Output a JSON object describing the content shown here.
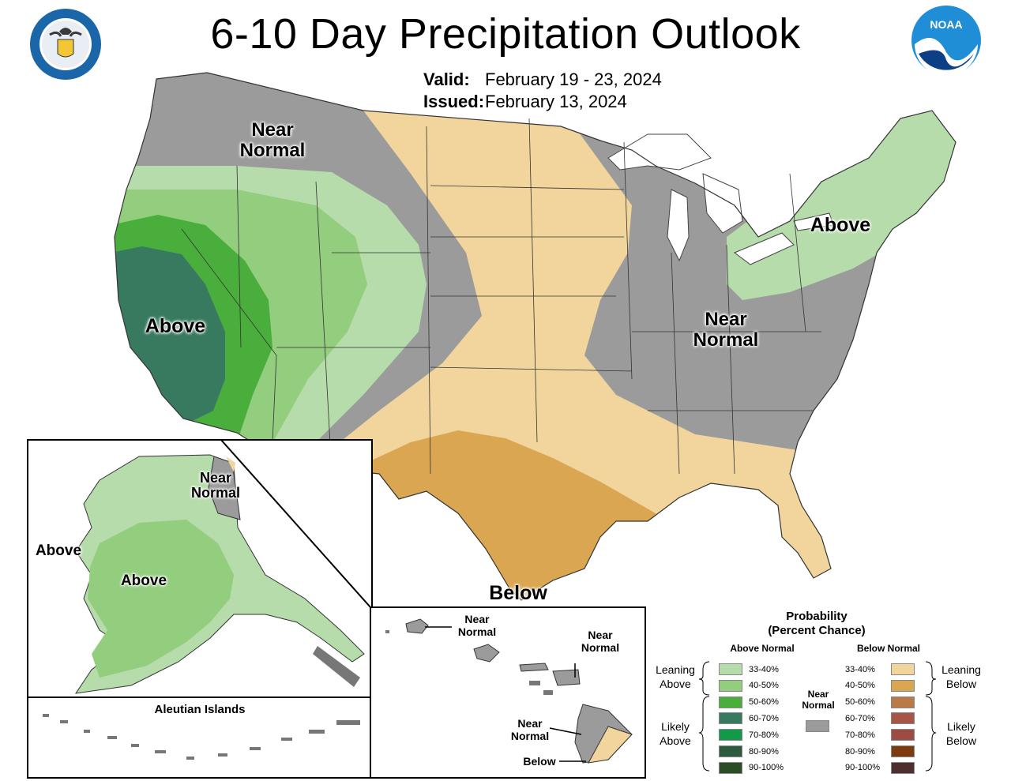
{
  "title": "6-10 Day Precipitation Outlook",
  "valid_label": "Valid:",
  "valid_value": "February 19 - 23, 2024",
  "issued_label": "Issued:",
  "issued_value": "February 13, 2024",
  "logos": {
    "left": "Department of Commerce seal",
    "right": "NOAA"
  },
  "regions": {
    "nw_near_normal": "Near\nNormal",
    "west_above": "Above",
    "ne_above": "Above",
    "east_near_normal": "Near\nNormal",
    "south_below": "Below"
  },
  "alaska": {
    "near_normal": "Near\nNormal",
    "above_west": "Above",
    "above_center": "Above",
    "aleutian_title": "Aleutian Islands"
  },
  "hawaii": {
    "near_normal_1": "Near\nNormal",
    "near_normal_2": "Near\nNormal",
    "near_normal_3": "Near\nNormal",
    "below": "Below"
  },
  "legend": {
    "title_line1": "Probability",
    "title_line2": "(Percent Chance)",
    "above_header": "Above Normal",
    "below_header": "Below Normal",
    "near_label": "Near\nNormal",
    "leaning_above": "Leaning\nAbove",
    "likely_above": "Likely\nAbove",
    "leaning_below": "Leaning\nBelow",
    "likely_below": "Likely\nBelow",
    "above_rows": [
      {
        "pct": "33-40%",
        "color": "#b5dcaa"
      },
      {
        "pct": "40-50%",
        "color": "#93cd7e"
      },
      {
        "pct": "50-60%",
        "color": "#4aae3c"
      },
      {
        "pct": "60-70%",
        "color": "#387a60"
      },
      {
        "pct": "70-80%",
        "color": "#129a4a"
      },
      {
        "pct": "80-90%",
        "color": "#2b5a3d"
      },
      {
        "pct": "90-100%",
        "color": "#2a4d26"
      }
    ],
    "below_rows": [
      {
        "pct": "33-40%",
        "color": "#f1d59c"
      },
      {
        "pct": "40-50%",
        "color": "#dba651"
      },
      {
        "pct": "50-60%",
        "color": "#b97a48"
      },
      {
        "pct": "60-70%",
        "color": "#a65646"
      },
      {
        "pct": "70-80%",
        "color": "#9e4a45"
      },
      {
        "pct": "80-90%",
        "color": "#7d3b10"
      },
      {
        "pct": "90-100%",
        "color": "#4d2f2f"
      }
    ],
    "near_color": "#9b9b9b"
  }
}
